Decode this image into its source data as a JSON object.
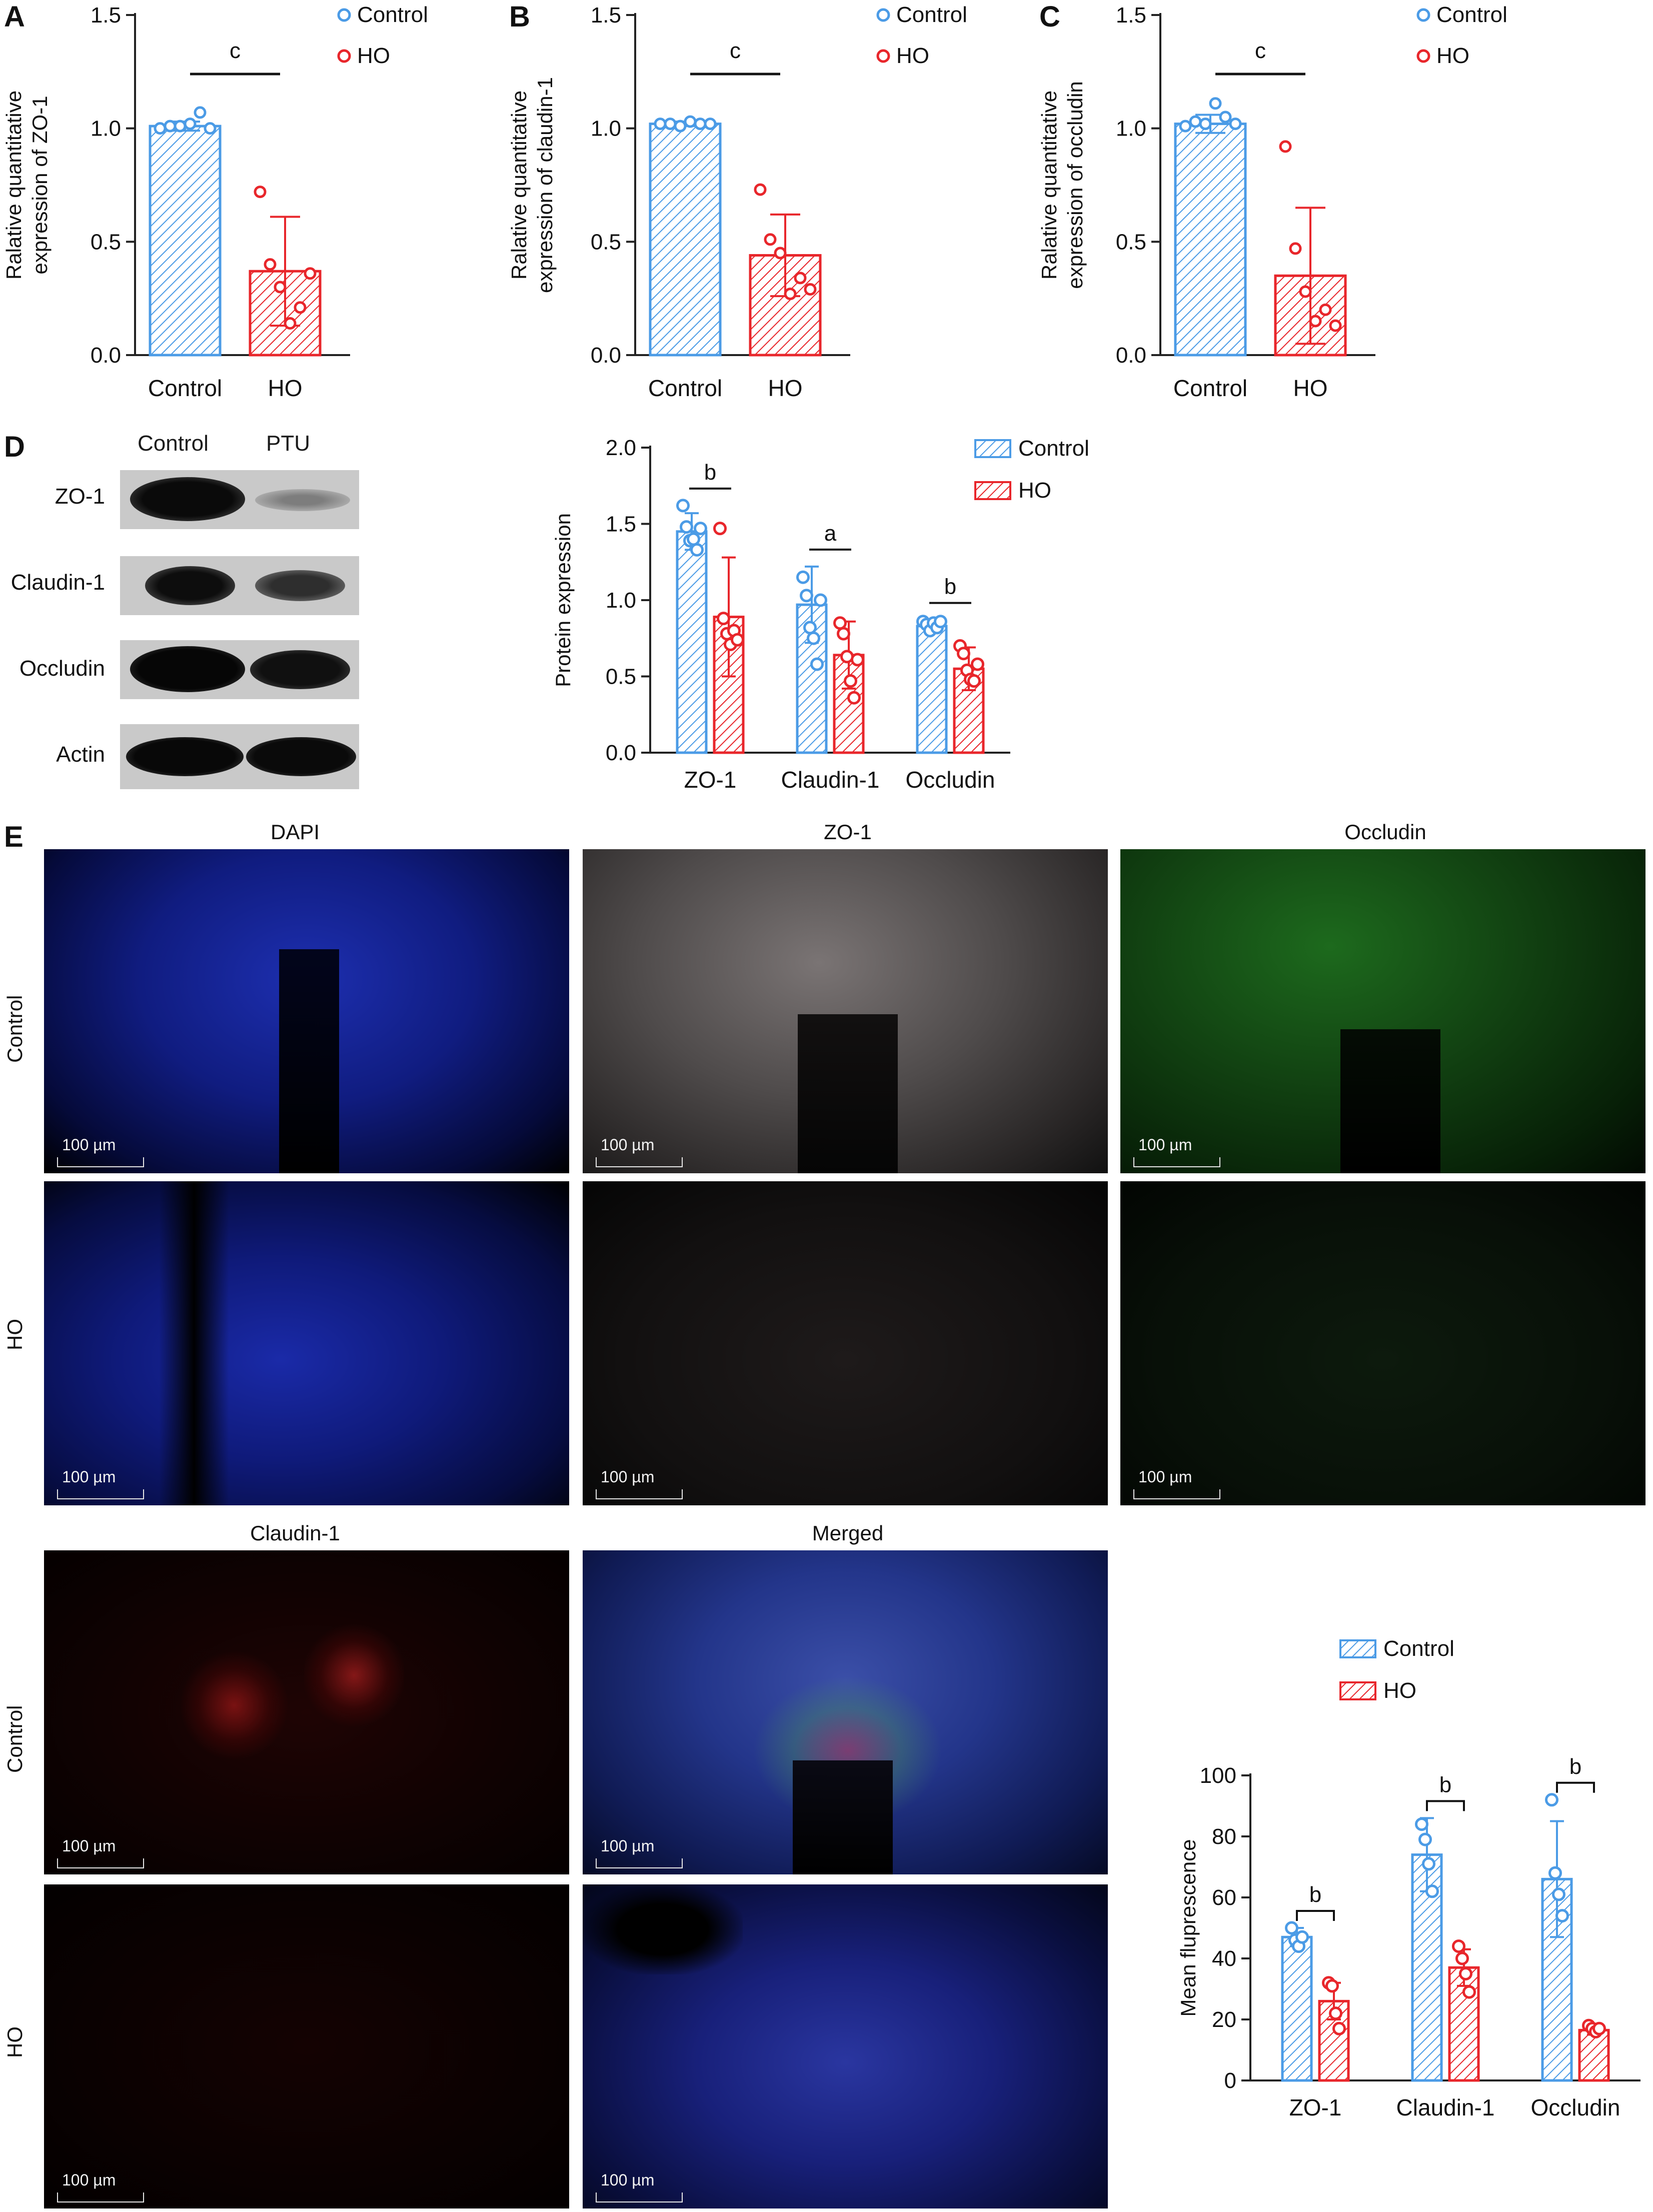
{
  "panel_letters": {
    "a": "A",
    "b": "B",
    "c": "C",
    "d": "D",
    "e": "E"
  },
  "blot": {
    "headers": [
      "Control",
      "PTU"
    ],
    "rows": [
      "ZO-1",
      "Claudin-1",
      "Occludin",
      "Actin"
    ]
  },
  "if_images": {
    "columns": [
      "DAPI",
      "ZO-1",
      "Occludin",
      "Claudin-1",
      "Merged"
    ],
    "rows": [
      "Control",
      "HO"
    ],
    "scale_text": "100 µm"
  },
  "colors": {
    "control": "#4b9be6",
    "ho": "#e8262b"
  },
  "chart_data": [
    {
      "id": "A",
      "type": "bar",
      "categories": [
        "Control",
        "HO"
      ],
      "values": [
        1.01,
        0.37
      ],
      "errors": [
        0.02,
        0.24
      ],
      "points": [
        [
          1.0,
          1.01,
          1.01,
          1.02,
          1.07,
          1.0
        ],
        [
          0.72,
          0.4,
          0.3,
          0.14,
          0.21,
          0.36
        ]
      ],
      "ylabel": [
        "Ralative quantitative",
        "expression of ZO-1"
      ],
      "ylim": [
        0,
        1.5
      ],
      "yticks": [
        "0.0",
        "0.5",
        "1.0",
        "1.5"
      ],
      "tick_values": [
        0,
        0.5,
        1.0,
        1.5
      ],
      "legend": [
        "Control",
        "HO"
      ],
      "annotations": [
        {
          "text": "c",
          "pair": [
            0,
            1
          ]
        }
      ]
    },
    {
      "id": "B",
      "type": "bar",
      "categories": [
        "Control",
        "HO"
      ],
      "values": [
        1.02,
        0.44
      ],
      "errors": [
        0.01,
        0.18
      ],
      "points": [
        [
          1.02,
          1.02,
          1.01,
          1.03,
          1.02,
          1.02
        ],
        [
          0.73,
          0.51,
          0.45,
          0.27,
          0.34,
          0.29
        ]
      ],
      "ylabel": [
        "Ralative quantitative",
        "expression of claudin-1"
      ],
      "ylim": [
        0,
        1.5
      ],
      "yticks": [
        "0.0",
        "0.5",
        "1.0",
        "1.5"
      ],
      "tick_values": [
        0,
        0.5,
        1.0,
        1.5
      ],
      "legend": [
        "Control",
        "HO"
      ],
      "annotations": [
        {
          "text": "c",
          "pair": [
            0,
            1
          ]
        }
      ]
    },
    {
      "id": "C",
      "type": "bar",
      "categories": [
        "Control",
        "HO"
      ],
      "values": [
        1.02,
        0.35
      ],
      "errors": [
        0.04,
        0.3
      ],
      "points": [
        [
          1.01,
          1.03,
          1.02,
          1.11,
          1.05,
          1.02
        ],
        [
          0.92,
          0.47,
          0.28,
          0.15,
          0.2,
          0.13
        ]
      ],
      "ylabel": [
        "Ralative quantitative",
        "expression of occludin"
      ],
      "ylim": [
        0,
        1.5
      ],
      "yticks": [
        "0.0",
        "0.5",
        "1.0",
        "1.5"
      ],
      "tick_values": [
        0,
        0.5,
        1.0,
        1.5
      ],
      "legend": [
        "Control",
        "HO"
      ],
      "annotations": [
        {
          "text": "c",
          "pair": [
            0,
            1
          ]
        }
      ]
    },
    {
      "id": "D",
      "type": "bar",
      "categories": [
        "ZO-1",
        "Claudin-1",
        "Occludin"
      ],
      "series": [
        {
          "name": "Control",
          "values": [
            1.45,
            0.97,
            0.83
          ],
          "errors": [
            0.12,
            0.25,
            0.04
          ],
          "points": [
            [
              1.62,
              1.48,
              1.39,
              1.4,
              1.33,
              1.47
            ],
            [
              1.15,
              1.03,
              0.82,
              0.75,
              0.58,
              1.0
            ],
            [
              0.86,
              0.84,
              0.8,
              0.85,
              0.82,
              0.86
            ]
          ]
        },
        {
          "name": "HO",
          "values": [
            0.89,
            0.64,
            0.55
          ],
          "errors": [
            0.39,
            0.22,
            0.14
          ],
          "points": [
            [
              1.47,
              0.88,
              0.78,
              0.71,
              0.8,
              0.74
            ],
            [
              0.85,
              0.78,
              0.63,
              0.47,
              0.36,
              0.61
            ],
            [
              0.7,
              0.65,
              0.54,
              0.48,
              0.47,
              0.58
            ]
          ]
        }
      ],
      "ylabel": "Protein expression",
      "ylim": [
        0,
        2.0
      ],
      "yticks": [
        "0.0",
        "0.5",
        "1.0",
        "1.5",
        "2.0"
      ],
      "tick_values": [
        0,
        0.5,
        1.0,
        1.5,
        2.0
      ],
      "legend": [
        "Control",
        "HO"
      ],
      "annotations": [
        "b",
        "a",
        "b"
      ]
    },
    {
      "id": "E",
      "type": "bar",
      "categories": [
        "ZO-1",
        "Claudin-1",
        "Occludin"
      ],
      "series": [
        {
          "name": "Control",
          "values": [
            47,
            74,
            66
          ],
          "errors": [
            3,
            12,
            19
          ],
          "points": [
            [
              50,
              46,
              44,
              47
            ],
            [
              84,
              79,
              71,
              62
            ],
            [
              92,
              68,
              61,
              54
            ]
          ]
        },
        {
          "name": "HO",
          "values": [
            26,
            37,
            16.5
          ],
          "errors": [
            6,
            6,
            1.5
          ],
          "points": [
            [
              32,
              31,
              22,
              17
            ],
            [
              44,
              40,
              35,
              29
            ],
            [
              18,
              17,
              16,
              17
            ]
          ]
        }
      ],
      "ylabel": "Mean fluprescence",
      "ylim": [
        0,
        100
      ],
      "yticks": [
        "0",
        "20",
        "40",
        "60",
        "80",
        "100"
      ],
      "tick_values": [
        0,
        20,
        40,
        60,
        80,
        100
      ],
      "legend": [
        "Control",
        "HO"
      ],
      "annotations": [
        "b",
        "b",
        "b"
      ]
    }
  ]
}
